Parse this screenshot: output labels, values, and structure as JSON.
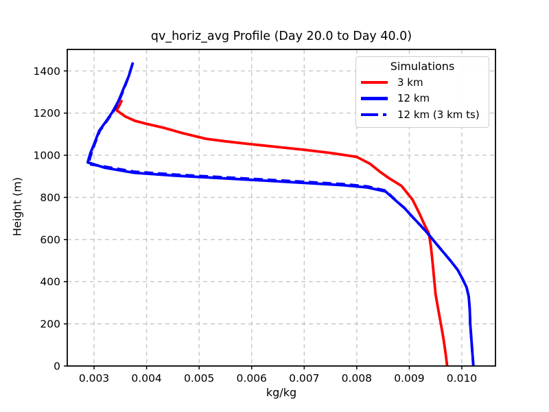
{
  "chart_data": {
    "type": "line",
    "title": "qv_horiz_avg Profile (Day 20.0 to Day 40.0)",
    "xlabel": "kg/kg",
    "ylabel": "Height (m)",
    "xlim": [
      0.00249,
      0.01064
    ],
    "ylim": [
      0,
      1502
    ],
    "grid": "dashed",
    "xticks": {
      "values": [
        0.003,
        0.004,
        0.005,
        0.006,
        0.007,
        0.008,
        0.009,
        0.01
      ],
      "labels": [
        "0.003",
        "0.004",
        "0.005",
        "0.006",
        "0.007",
        "0.008",
        "0.009",
        "0.010"
      ]
    },
    "yticks": {
      "values": [
        0,
        200,
        400,
        600,
        800,
        1000,
        1200,
        1400
      ],
      "labels": [
        "0",
        "200",
        "400",
        "600",
        "800",
        "1000",
        "1200",
        "1400"
      ]
    },
    "legend": {
      "title": "Simulations",
      "position": "upper right",
      "entries": [
        {
          "label": "3 km",
          "color": "#ff0000",
          "style": "solid"
        },
        {
          "label": "12 km",
          "color": "#0000ff",
          "style": "solid"
        },
        {
          "label": "12 km (3 km ts)",
          "color": "#0000ff",
          "style": "dashed"
        }
      ]
    },
    "colors": {
      "red": "#ff0000",
      "blue": "#0000ff",
      "grid": "#c6c6c6",
      "frame": "#000000",
      "legend_border": "#cccccc",
      "background": "#ffffff"
    },
    "series": [
      {
        "name": "3 km",
        "color": "#ff0000",
        "style": "solid",
        "points": [
          [
            0.00972,
            0
          ],
          [
            0.00969,
            60
          ],
          [
            0.00965,
            130
          ],
          [
            0.0096,
            200
          ],
          [
            0.00955,
            270
          ],
          [
            0.0095,
            340
          ],
          [
            0.00947,
            420
          ],
          [
            0.00944,
            500
          ],
          [
            0.00941,
            570
          ],
          [
            0.00937,
            630
          ],
          [
            0.00929,
            670
          ],
          [
            0.0092,
            720
          ],
          [
            0.00906,
            790
          ],
          [
            0.00885,
            855
          ],
          [
            0.00862,
            890
          ],
          [
            0.00845,
            920
          ],
          [
            0.00825,
            960
          ],
          [
            0.008,
            992
          ],
          [
            0.0075,
            1011
          ],
          [
            0.007,
            1026
          ],
          [
            0.0065,
            1039
          ],
          [
            0.006,
            1052
          ],
          [
            0.0055,
            1066
          ],
          [
            0.00513,
            1078
          ],
          [
            0.0047,
            1104
          ],
          [
            0.0043,
            1132
          ],
          [
            0.00398,
            1150
          ],
          [
            0.00378,
            1163
          ],
          [
            0.0036,
            1183
          ],
          [
            0.00343,
            1213
          ],
          [
            0.00348,
            1235
          ],
          [
            0.00353,
            1262
          ]
        ]
      },
      {
        "name": "12 km",
        "color": "#0000ff",
        "style": "solid",
        "points": [
          [
            0.01022,
            0
          ],
          [
            0.01019,
            100
          ],
          [
            0.01016,
            200
          ],
          [
            0.01015,
            270
          ],
          [
            0.01013,
            330
          ],
          [
            0.01009,
            373
          ],
          [
            0.01002,
            410
          ],
          [
            0.00992,
            456
          ],
          [
            0.00979,
            498
          ],
          [
            0.0096,
            554
          ],
          [
            0.00946,
            596
          ],
          [
            0.00933,
            635
          ],
          [
            0.0092,
            671
          ],
          [
            0.00905,
            710
          ],
          [
            0.00891,
            749
          ],
          [
            0.00876,
            781
          ],
          [
            0.00855,
            828
          ],
          [
            0.0082,
            847
          ],
          [
            0.00774,
            858
          ],
          [
            0.0065,
            876
          ],
          [
            0.0055,
            890
          ],
          [
            0.00454,
            903
          ],
          [
            0.00376,
            917
          ],
          [
            0.0032,
            941
          ],
          [
            0.00288,
            966
          ],
          [
            0.0029,
            985
          ],
          [
            0.00293,
            1010
          ],
          [
            0.003,
            1052
          ],
          [
            0.0031,
            1117
          ],
          [
            0.00322,
            1158
          ],
          [
            0.00335,
            1205
          ],
          [
            0.00346,
            1255
          ],
          [
            0.00356,
            1315
          ],
          [
            0.00366,
            1375
          ],
          [
            0.00374,
            1440
          ]
        ]
      },
      {
        "name": "12 km (3 km ts)",
        "color": "#0000ff",
        "style": "dashed",
        "points": [
          [
            0.01022,
            0
          ],
          [
            0.01019,
            100
          ],
          [
            0.01016,
            200
          ],
          [
            0.01015,
            270
          ],
          [
            0.01013,
            330
          ],
          [
            0.01009,
            373
          ],
          [
            0.01002,
            410
          ],
          [
            0.00992,
            456
          ],
          [
            0.00979,
            498
          ],
          [
            0.0096,
            554
          ],
          [
            0.00946,
            596
          ],
          [
            0.00933,
            635
          ],
          [
            0.0092,
            671
          ],
          [
            0.00905,
            710
          ],
          [
            0.00891,
            749
          ],
          [
            0.00876,
            781
          ],
          [
            0.00855,
            832
          ],
          [
            0.0082,
            852
          ],
          [
            0.00774,
            863
          ],
          [
            0.0065,
            881
          ],
          [
            0.0055,
            895
          ],
          [
            0.00454,
            908
          ],
          [
            0.00376,
            922
          ],
          [
            0.0032,
            946
          ],
          [
            0.0029,
            958
          ],
          [
            0.00292,
            985
          ],
          [
            0.00295,
            1010
          ],
          [
            0.00301,
            1052
          ],
          [
            0.00311,
            1117
          ],
          [
            0.00323,
            1158
          ],
          [
            0.00336,
            1205
          ],
          [
            0.00347,
            1255
          ],
          [
            0.00357,
            1315
          ],
          [
            0.00366,
            1375
          ],
          [
            0.00374,
            1440
          ]
        ]
      }
    ]
  }
}
